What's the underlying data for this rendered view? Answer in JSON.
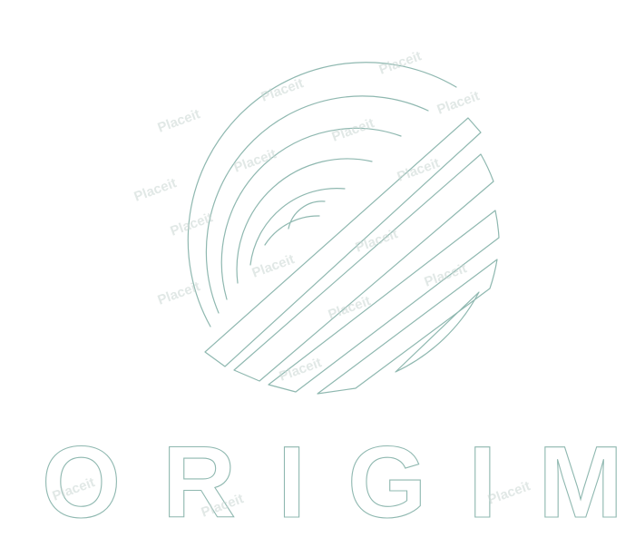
{
  "brand": {
    "name": "ORIGIM",
    "outline_color": "#8fb8b0",
    "background_color": "#ffffff"
  },
  "watermark": {
    "text": "Placeit"
  }
}
